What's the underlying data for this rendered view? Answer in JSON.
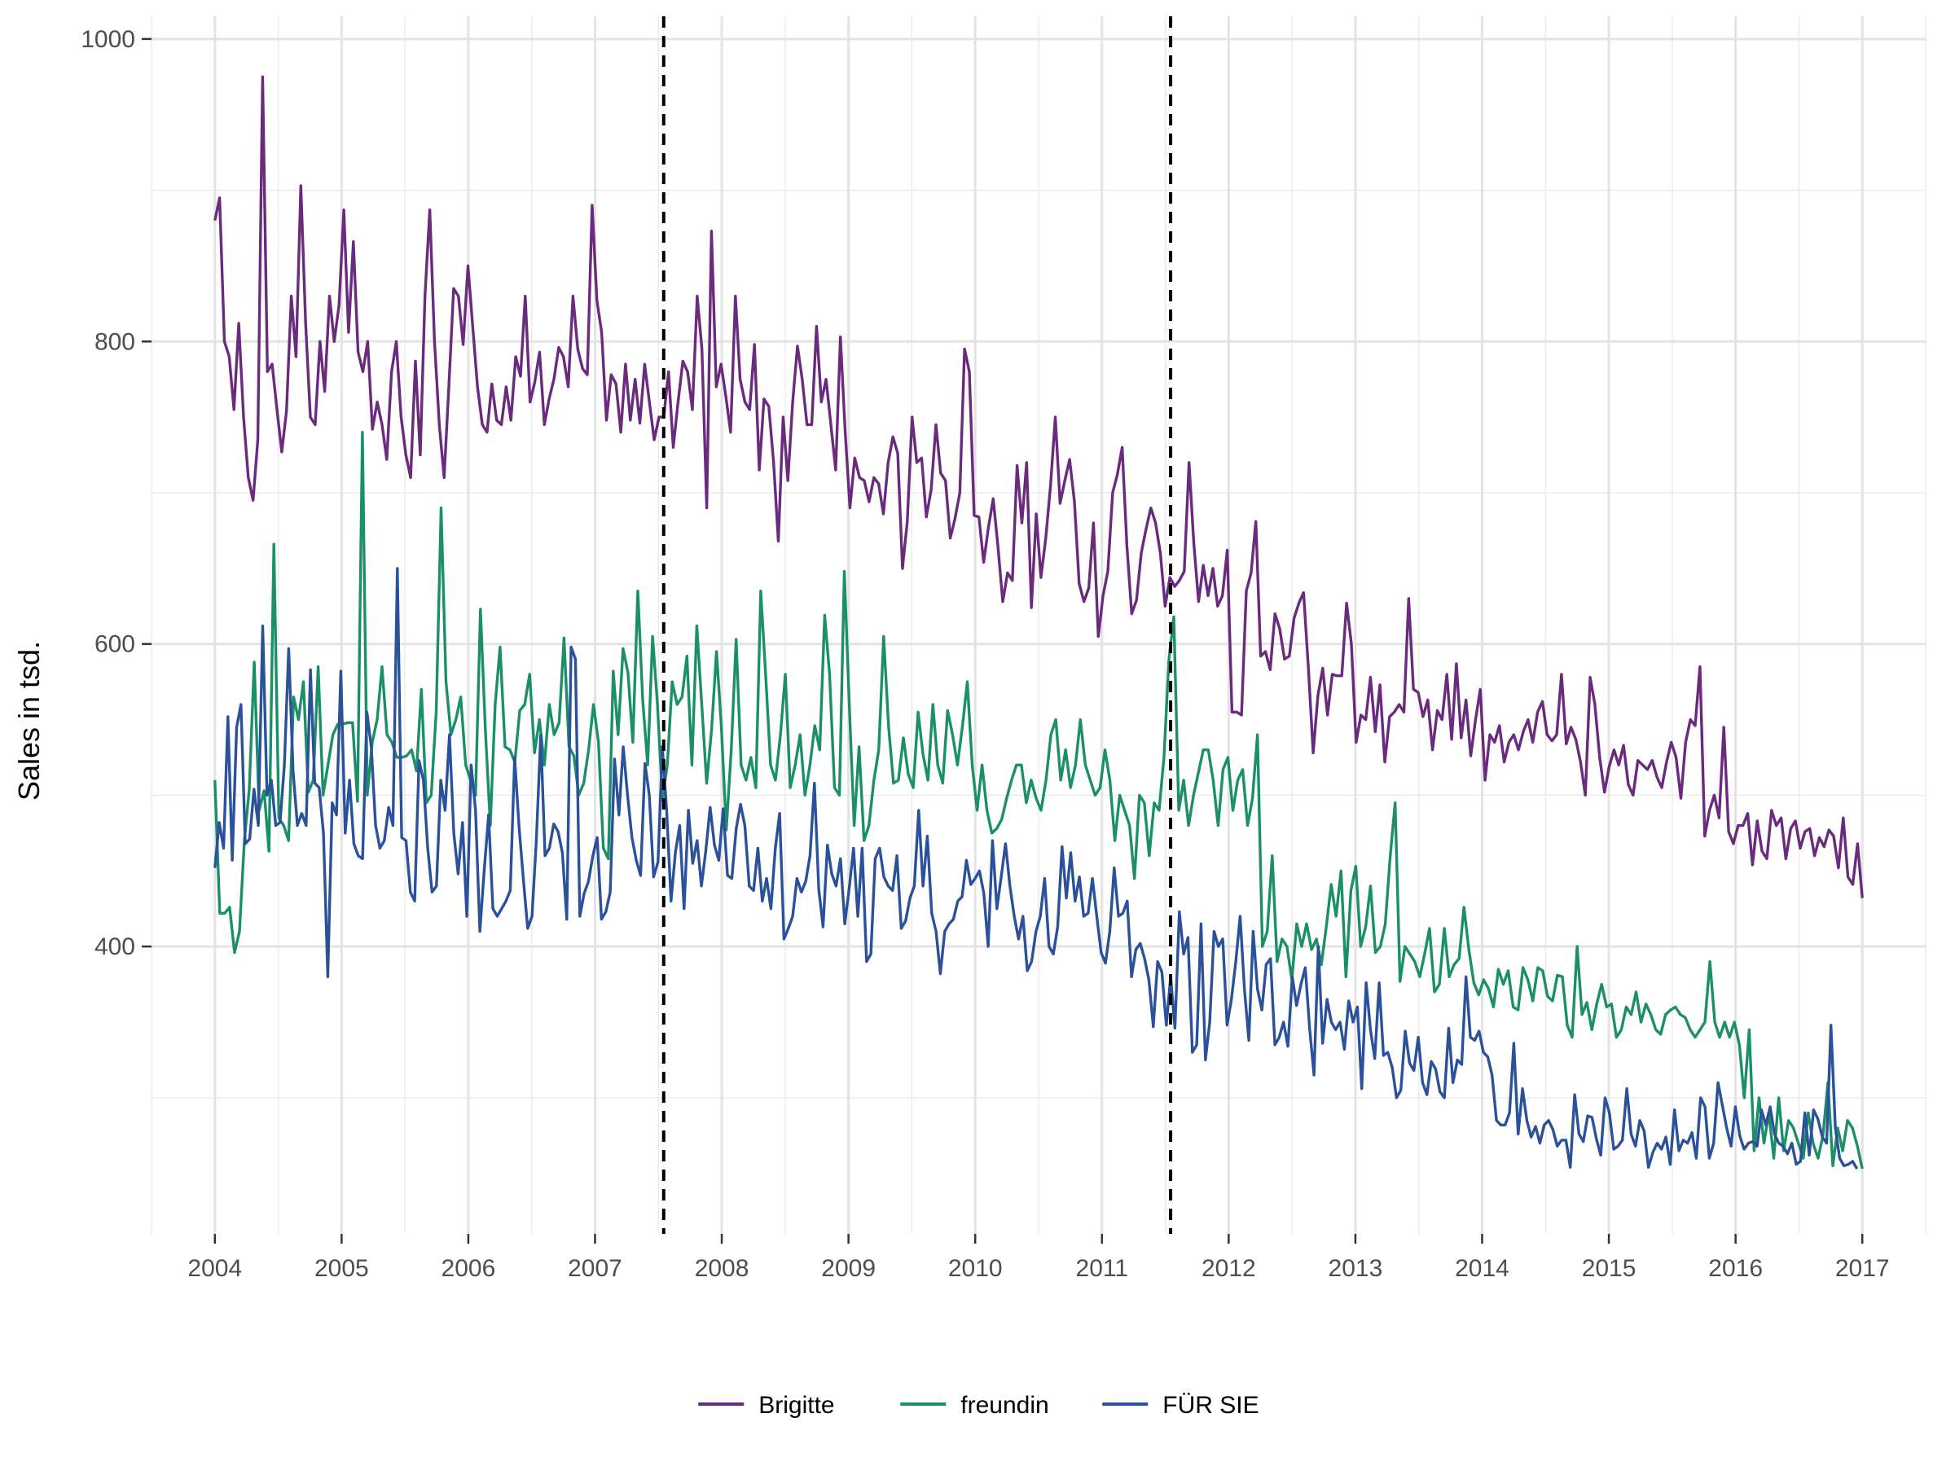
{
  "chart_data": {
    "type": "line",
    "title": "",
    "xlabel": "",
    "ylabel": "Sales in tsd.",
    "xlim": [
      2003.5,
      2017.5
    ],
    "ylim": [
      210,
      1015
    ],
    "x_ticks": [
      "2004",
      "2005",
      "2006",
      "2007",
      "2008",
      "2009",
      "2010",
      "2011",
      "2012",
      "2013",
      "2014",
      "2015",
      "2016",
      "2017"
    ],
    "y_ticks": [
      "400",
      "600",
      "800",
      "1000"
    ],
    "grid": true,
    "legend_position": "bottom",
    "vlines": [
      2007.5417,
      2011.5417
    ],
    "series": [
      {
        "name": "Brigitte",
        "color": "#6a2a7d",
        "x_start": 2004.0,
        "x_end": 2017.0,
        "values": [
          880,
          895,
          800,
          790,
          755,
          812,
          750,
          710,
          695,
          735,
          975,
          780,
          785,
          755,
          727,
          754,
          830,
          790,
          903,
          812,
          750,
          745,
          800,
          767,
          830,
          800,
          824,
          887,
          806,
          866,
          793,
          780,
          800,
          742,
          760,
          745,
          722,
          780,
          800,
          750,
          725,
          710,
          787,
          725,
          830,
          887,
          800,
          745,
          710,
          770,
          835,
          830,
          798,
          850,
          810,
          770,
          745,
          740,
          772,
          748,
          745,
          770,
          748,
          790,
          777,
          830,
          760,
          773,
          793,
          745,
          762,
          775,
          796,
          790,
          770,
          830,
          795,
          782,
          778,
          890,
          827,
          806,
          748,
          778,
          772,
          740,
          785,
          748,
          775,
          746,
          785,
          760,
          735,
          750,
          750,
          780,
          730,
          760,
          787,
          780,
          755,
          830,
          795,
          690,
          873,
          770,
          785,
          764,
          740,
          830,
          775,
          760,
          755,
          798,
          715,
          762,
          757,
          720,
          668,
          750,
          708,
          760,
          797,
          775,
          745,
          745,
          810,
          760,
          775,
          745,
          715,
          803,
          740,
          690,
          723,
          710,
          708,
          694,
          710,
          706,
          686,
          720,
          737,
          726,
          650,
          681,
          750,
          720,
          723,
          684,
          702,
          745,
          713,
          708,
          670,
          683,
          700,
          795,
          780,
          685,
          684,
          654,
          677,
          696,
          664,
          628,
          647,
          642,
          718,
          680,
          720,
          624,
          686,
          644,
          670,
          705,
          750,
          693,
          708,
          722,
          694,
          640,
          628,
          637,
          680,
          605,
          632,
          648,
          700,
          712,
          730,
          665,
          620,
          629,
          660,
          676,
          690,
          680,
          660,
          625,
          644,
          638,
          642,
          648,
          720,
          667,
          628,
          652,
          632,
          650,
          625,
          632,
          662,
          555,
          555,
          553,
          635,
          647,
          681,
          592,
          595,
          583,
          620,
          610,
          590,
          592,
          617,
          627,
          634,
          584,
          528,
          566,
          584,
          553,
          580,
          579,
          579,
          627,
          600,
          535,
          553,
          550,
          578,
          542,
          573,
          522,
          552,
          555,
          560,
          555,
          630,
          570,
          568,
          552,
          563,
          530,
          556,
          550,
          580,
          537,
          587,
          538,
          563,
          526,
          550,
          570,
          510,
          540,
          535,
          546,
          522,
          535,
          540,
          530,
          542,
          550,
          535,
          555,
          562,
          540,
          536,
          540,
          580,
          534,
          545,
          537,
          522,
          500,
          578,
          560,
          525,
          502,
          519,
          530,
          520,
          533,
          507,
          500,
          523,
          520,
          517,
          523,
          512,
          505,
          522,
          535,
          525,
          498,
          535,
          550,
          546,
          585,
          473,
          490,
          500,
          485,
          545,
          476,
          468,
          480,
          480,
          488,
          454,
          483,
          463,
          458,
          490,
          480,
          485,
          458,
          478,
          483,
          465,
          476,
          478,
          460,
          472,
          466,
          477,
          473,
          452,
          485,
          446,
          441,
          468,
          432
        ]
      },
      {
        "name": "freundin",
        "color": "#1b9068",
        "x_start": 2004.0,
        "x_end": 2017.0,
        "values": [
          510,
          422,
          422,
          426,
          396,
          410,
          470,
          504,
          588,
          490,
          503,
          463,
          666,
          485,
          480,
          470,
          565,
          550,
          575,
          502,
          510,
          585,
          500,
          520,
          540,
          547,
          547,
          548,
          548,
          496,
          740,
          500,
          535,
          550,
          585,
          540,
          535,
          525,
          525,
          526,
          530,
          516,
          570,
          495,
          500,
          555,
          690,
          575,
          540,
          550,
          565,
          520,
          510,
          500,
          623,
          544,
          480,
          560,
          598,
          532,
          530,
          522,
          556,
          560,
          580,
          528,
          550,
          520,
          560,
          540,
          548,
          604,
          532,
          526,
          500,
          508,
          530,
          560,
          535,
          465,
          458,
          582,
          540,
          597,
          581,
          535,
          635,
          563,
          520,
          605,
          560,
          497,
          520,
          575,
          560,
          565,
          592,
          520,
          612,
          560,
          508,
          543,
          595,
          545,
          477,
          530,
          603,
          520,
          510,
          525,
          505,
          635,
          580,
          520,
          510,
          540,
          580,
          505,
          520,
          540,
          500,
          520,
          546,
          530,
          619,
          580,
          505,
          500,
          648,
          560,
          480,
          532,
          470,
          480,
          510,
          530,
          605,
          545,
          508,
          510,
          538,
          514,
          505,
          555,
          527,
          510,
          560,
          520,
          508,
          556,
          540,
          520,
          545,
          575,
          520,
          490,
          520,
          490,
          475,
          478,
          484,
          498,
          510,
          520,
          520,
          495,
          510,
          498,
          490,
          510,
          540,
          550,
          510,
          530,
          505,
          520,
          550,
          520,
          510,
          500,
          505,
          530,
          510,
          470,
          500,
          490,
          480,
          445,
          500,
          495,
          460,
          495,
          490,
          525,
          590,
          618,
          490,
          510,
          480,
          500,
          515,
          530,
          530,
          510,
          480,
          517,
          525,
          490,
          510,
          517,
          480,
          498,
          540,
          400,
          410,
          460,
          390,
          405,
          400,
          378,
          415,
          400,
          415,
          398,
          405,
          388,
          413,
          441,
          420,
          450,
          380,
          437,
          453,
          400,
          413,
          440,
          396,
          400,
          415,
          460,
          495,
          377,
          400,
          395,
          390,
          380,
          395,
          412,
          370,
          375,
          412,
          380,
          388,
          392,
          426,
          398,
          376,
          368,
          378,
          372,
          360,
          385,
          375,
          384,
          360,
          358,
          386,
          378,
          364,
          386,
          384,
          367,
          364,
          381,
          380,
          348,
          340,
          400,
          355,
          363,
          345,
          362,
          375,
          360,
          362,
          340,
          345,
          360,
          355,
          370,
          350,
          362,
          355,
          345,
          342,
          355,
          358,
          360,
          355,
          353,
          345,
          340,
          345,
          350,
          390,
          350,
          340,
          350,
          340,
          350,
          335,
          300,
          345,
          265,
          300,
          270,
          290,
          260,
          300,
          265,
          285,
          280,
          270,
          260,
          290,
          270,
          260,
          275,
          310,
          255,
          280,
          265,
          285,
          280,
          268,
          253
        ]
      },
      {
        "name": "FÜR SIE",
        "color": "#2a5199",
        "x_start": 2004.0,
        "x_end": 2016.9583,
        "values": [
          452,
          482,
          465,
          552,
          457,
          545,
          560,
          468,
          471,
          504,
          480,
          612,
          500,
          510,
          480,
          482,
          520,
          597,
          516,
          480,
          488,
          480,
          583,
          508,
          505,
          475,
          380,
          495,
          487,
          582,
          475,
          510,
          468,
          460,
          458,
          555,
          532,
          480,
          465,
          470,
          492,
          480,
          650,
          472,
          470,
          436,
          430,
          523,
          510,
          465,
          436,
          440,
          510,
          490,
          540,
          475,
          448,
          482,
          420,
          520,
          490,
          410,
          450,
          487,
          425,
          420,
          425,
          430,
          437,
          525,
          480,
          445,
          412,
          420,
          470,
          540,
          460,
          465,
          481,
          476,
          462,
          418,
          598,
          590,
          420,
          435,
          443,
          460,
          472,
          418,
          423,
          436,
          524,
          487,
          532,
          500,
          472,
          457,
          447,
          521,
          500,
          446,
          456,
          532,
          490,
          430,
          462,
          480,
          425,
          490,
          455,
          470,
          440,
          463,
          492,
          467,
          457,
          491,
          447,
          445,
          478,
          494,
          480,
          440,
          437,
          465,
          430,
          445,
          425,
          465,
          488,
          405,
          412,
          420,
          445,
          436,
          443,
          460,
          508,
          438,
          413,
          467,
          448,
          440,
          458,
          415,
          438,
          465,
          420,
          465,
          390,
          395,
          458,
          465,
          446,
          440,
          437,
          460,
          412,
          417,
          432,
          440,
          490,
          440,
          473,
          422,
          410,
          382,
          410,
          415,
          418,
          430,
          433,
          457,
          441,
          445,
          450,
          435,
          400,
          470,
          425,
          446,
          468,
          440,
          420,
          405,
          420,
          384,
          390,
          410,
          420,
          445,
          400,
          395,
          413,
          466,
          432,
          462,
          430,
          446,
          420,
          422,
          445,
          420,
          396,
          389,
          410,
          452,
          420,
          422,
          430,
          380,
          398,
          402,
          392,
          378,
          347,
          390,
          383,
          348,
          380,
          346,
          423,
          395,
          406,
          330,
          335,
          415,
          325,
          350,
          410,
          400,
          405,
          348,
          365,
          390,
          420,
          372,
          338,
          410,
          372,
          358,
          388,
          392,
          335,
          340,
          350,
          334,
          380,
          361,
          375,
          386,
          346,
          315,
          400,
          336,
          365,
          350,
          345,
          350,
          332,
          364,
          350,
          360,
          306,
          376,
          345,
          326,
          376,
          328,
          330,
          320,
          300,
          305,
          344,
          323,
          318,
          340,
          310,
          302,
          324,
          319,
          304,
          300,
          346,
          310,
          325,
          322,
          380,
          340,
          338,
          344,
          330,
          327,
          315,
          285,
          282,
          282,
          290,
          336,
          276,
          306,
          285,
          274,
          281,
          270,
          282,
          285,
          279,
          268,
          272,
          272,
          254,
          302,
          276,
          271,
          288,
          287,
          273,
          262,
          300,
          290,
          266,
          268,
          272,
          306,
          276,
          268,
          285,
          278,
          254,
          264,
          270,
          266,
          274,
          256,
          292,
          265,
          272,
          270,
          277,
          260,
          300,
          294,
          260,
          270,
          310,
          295,
          280,
          268,
          294,
          275,
          266,
          270,
          271,
          268,
          292,
          282,
          294,
          276,
          270,
          268,
          263,
          270,
          256,
          258,
          290,
          262,
          292,
          286,
          274,
          270,
          348,
          280,
          260,
          255,
          256,
          258,
          253
        ]
      }
    ]
  }
}
